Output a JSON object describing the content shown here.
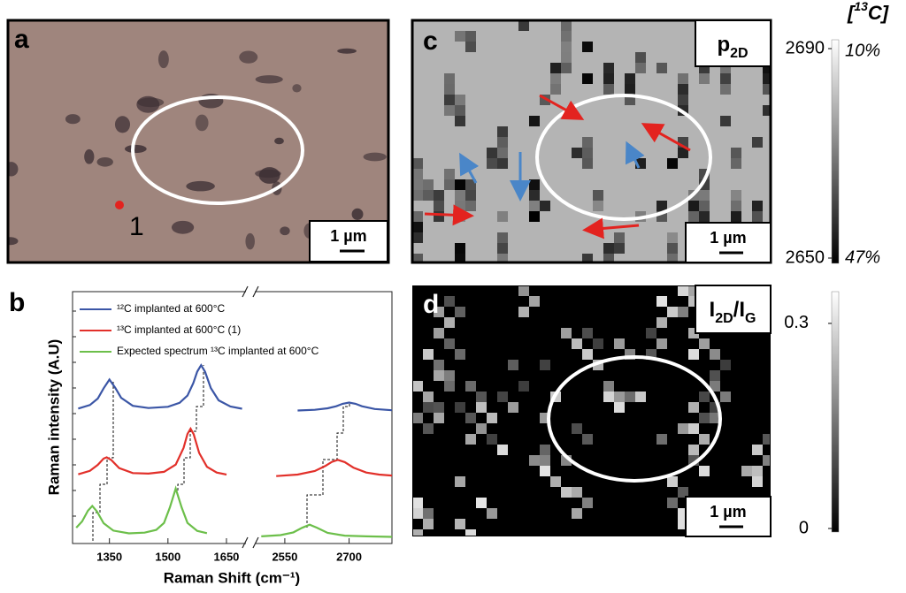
{
  "panels": {
    "a": {
      "label": "a",
      "point_label": "1",
      "scale_bar": "1 µm"
    },
    "c": {
      "label": "c",
      "tag_parts": [
        "p",
        "2D"
      ],
      "scale_bar": "1 µm",
      "colorbar": {
        "lim": [
          2650,
          2690
        ],
        "ticks": [
          2650,
          2690
        ],
        "title_parts": [
          "[",
          "13",
          "C]"
        ],
        "top_label": "10%",
        "bottom_label": "47%"
      }
    },
    "d": {
      "label": "d",
      "tag_parts": [
        "I",
        "2D",
        "/I",
        "G"
      ],
      "scale_bar": "1 µm",
      "colorbar": {
        "lim": [
          0,
          0.34
        ],
        "ticks": [
          0,
          0.3
        ]
      }
    }
  },
  "chart_data": {
    "type": "line",
    "panel_label": "b",
    "xlabel": "Raman Shift (cm⁻¹)",
    "ylabel": "Raman intensity (A.U)",
    "xlim": [
      1260,
      2800
    ],
    "x_break": [
      1700,
      2480
    ],
    "ylim": [
      0,
      10
    ],
    "xticks": [
      1350,
      1500,
      1650,
      2550,
      2700
    ],
    "series": [
      {
        "name": "¹²C implanted at 600°C",
        "color": "#3b56a6",
        "x": [
          1270,
          1300,
          1320,
          1335,
          1350,
          1365,
          1380,
          1410,
          1450,
          1500,
          1530,
          1550,
          1565,
          1575,
          1585,
          1595,
          1610,
          1630,
          1660,
          1690,
          null,
          2580,
          2620,
          2650,
          2670,
          2685,
          2700,
          2715,
          2730,
          2760,
          2800
        ],
        "values": [
          5.31,
          5.45,
          5.71,
          6.12,
          6.47,
          6.14,
          5.74,
          5.42,
          5.33,
          5.38,
          5.54,
          5.83,
          6.33,
          6.79,
          7.05,
          6.79,
          6.13,
          5.64,
          5.39,
          5.3,
          null,
          5.23,
          5.26,
          5.32,
          5.4,
          5.5,
          5.55,
          5.5,
          5.4,
          5.29,
          5.24
        ]
      },
      {
        "name": "¹³C implanted at 600°C (1)",
        "color": "#e2302a",
        "x": [
          1270,
          1300,
          1320,
          1335,
          1343,
          1355,
          1375,
          1410,
          1450,
          1490,
          1520,
          1540,
          1550,
          1558,
          1566,
          1580,
          1600,
          1625,
          1650,
          null,
          2530,
          2580,
          2620,
          2645,
          2660,
          2674,
          2690,
          2710,
          2740,
          2770,
          2800
        ],
        "values": [
          2.67,
          2.81,
          3.05,
          3.3,
          3.35,
          3.24,
          2.92,
          2.72,
          2.7,
          2.77,
          3.06,
          3.73,
          4.29,
          4.5,
          4.28,
          3.53,
          2.97,
          2.74,
          2.66,
          null,
          2.6,
          2.66,
          2.8,
          3.01,
          3.17,
          3.25,
          3.16,
          2.94,
          2.74,
          2.66,
          2.62
        ]
      },
      {
        "name": "Expected spectrum ¹³C implanted at 600°C",
        "color": "#6cbf4a",
        "x": [
          1265,
          1280,
          1295,
          1306,
          1318,
          1335,
          1360,
          1400,
          1440,
          1470,
          1490,
          1505,
          1520,
          1535,
          1550,
          1575,
          1600,
          null,
          2495,
          2540,
          2570,
          2590,
          2608,
          2625,
          2650,
          2690,
          2740,
          2800
        ],
        "values": [
          0.53,
          0.78,
          1.21,
          1.4,
          1.18,
          0.71,
          0.41,
          0.3,
          0.33,
          0.44,
          0.72,
          1.34,
          2.1,
          1.34,
          0.72,
          0.4,
          0.31,
          null,
          0.18,
          0.23,
          0.34,
          0.52,
          0.65,
          0.53,
          0.32,
          0.21,
          0.18,
          0.16
        ]
      }
    ]
  }
}
